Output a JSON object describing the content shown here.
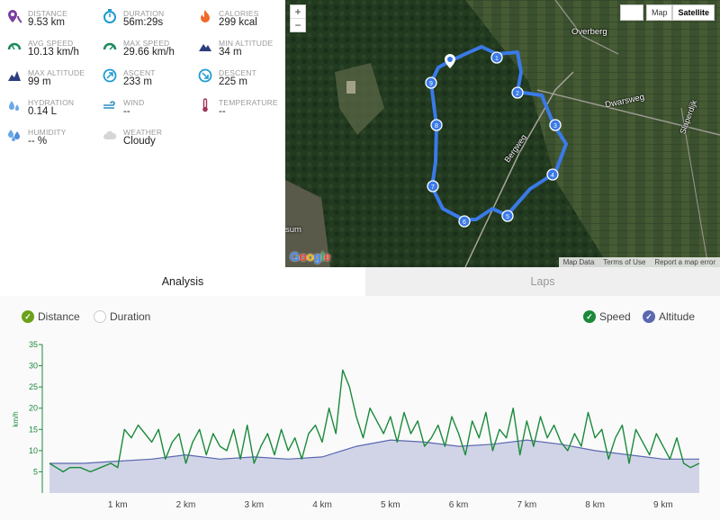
{
  "stats": {
    "distance": {
      "label": "DISTANCE",
      "value": "9.53 km",
      "icon": "map-pin-icon"
    },
    "duration": {
      "label": "DURATION",
      "value": "56m:29s",
      "icon": "stopwatch-icon"
    },
    "calories": {
      "label": "CALORIES",
      "value": "299 kcal",
      "icon": "flame-icon"
    },
    "avg_speed": {
      "label": "AVG SPEED",
      "value": "10.13 km/h",
      "icon": "speedometer-icon"
    },
    "max_speed": {
      "label": "MAX SPEED",
      "value": "29.66 km/h",
      "icon": "speedometer-max-icon"
    },
    "min_altitude": {
      "label": "MIN ALTITUDE",
      "value": "34 m",
      "icon": "mountain-icon"
    },
    "max_altitude": {
      "label": "MAX ALTITUDE",
      "value": "99 m",
      "icon": "mountain-peak-icon"
    },
    "ascent": {
      "label": "ASCENT",
      "value": "233 m",
      "icon": "ascent-icon"
    },
    "descent": {
      "label": "DESCENT",
      "value": "225 m",
      "icon": "descent-icon"
    },
    "hydration": {
      "label": "HYDRATION",
      "value": "0.14 L",
      "icon": "water-drops-icon"
    },
    "wind": {
      "label": "WIND",
      "value": "--",
      "icon": "wind-icon"
    },
    "temperature": {
      "label": "TEMPERATURE",
      "value": "--",
      "icon": "thermometer-icon"
    },
    "humidity": {
      "label": "HUMIDITY",
      "value": "-- %",
      "icon": "humidity-icon"
    },
    "weather": {
      "label": "WEATHER",
      "value": "Cloudy",
      "icon": "cloud-icon"
    }
  },
  "map": {
    "controls": {
      "map": "Map",
      "satellite": "Satellite"
    },
    "zoom": {
      "in": "+",
      "out": "−"
    },
    "labels": {
      "overberg": "Overberg",
      "dwarsweg": "Dwarsweg",
      "slaperdijk": "Slaperdijk",
      "bergweg": "Bergweg",
      "sum": "sum"
    },
    "logo": "Google",
    "attribution": [
      "Map Data",
      "Terms of Use",
      "Report a map error"
    ],
    "markers": [
      "1",
      "2",
      "3",
      "4",
      "5",
      "6",
      "7",
      "8",
      "9"
    ]
  },
  "tabs": {
    "analysis": "Analysis",
    "laps": "Laps"
  },
  "toggles": {
    "distance": "Distance",
    "duration": "Duration",
    "speed": "Speed",
    "altitude": "Altitude"
  },
  "colors": {
    "speed": "#1a8a3a",
    "altitude": "#5a68b0",
    "altitude_fill": "#c9cde3",
    "accent_green": "#6aa119",
    "route": "#3a7ae8"
  },
  "chart_data": {
    "type": "line",
    "ylabel": "km/h",
    "ylim": [
      0,
      35
    ],
    "yticks": [
      5,
      10,
      15,
      20,
      25,
      30,
      35
    ],
    "xlim": [
      0,
      9.53
    ],
    "xticks": [
      "1 km",
      "2 km",
      "3 km",
      "4 km",
      "5 km",
      "6 km",
      "7 km",
      "8 km",
      "9 km"
    ],
    "series": [
      {
        "name": "Speed",
        "x": [
          0,
          0.1,
          0.2,
          0.3,
          0.45,
          0.6,
          0.75,
          0.9,
          1.0,
          1.1,
          1.2,
          1.3,
          1.4,
          1.5,
          1.6,
          1.7,
          1.8,
          1.9,
          2.0,
          2.1,
          2.2,
          2.3,
          2.4,
          2.5,
          2.6,
          2.7,
          2.8,
          2.9,
          3.0,
          3.1,
          3.2,
          3.3,
          3.4,
          3.5,
          3.6,
          3.7,
          3.8,
          3.9,
          4.0,
          4.1,
          4.2,
          4.3,
          4.4,
          4.5,
          4.6,
          4.7,
          4.8,
          4.9,
          5.0,
          5.1,
          5.2,
          5.3,
          5.4,
          5.5,
          5.6,
          5.7,
          5.8,
          5.9,
          6.0,
          6.1,
          6.2,
          6.3,
          6.4,
          6.5,
          6.6,
          6.7,
          6.8,
          6.9,
          7.0,
          7.1,
          7.2,
          7.3,
          7.4,
          7.5,
          7.6,
          7.7,
          7.8,
          7.9,
          8.0,
          8.1,
          8.2,
          8.3,
          8.4,
          8.5,
          8.6,
          8.7,
          8.8,
          8.9,
          9.0,
          9.1,
          9.2,
          9.3,
          9.4,
          9.53
        ],
        "values": [
          7,
          6,
          5,
          6,
          6,
          5,
          6,
          7,
          6,
          15,
          13,
          16,
          14,
          12,
          15,
          8,
          12,
          14,
          7,
          12,
          15,
          9,
          14,
          11,
          10,
          15,
          8,
          16,
          7,
          11,
          14,
          9,
          15,
          10,
          13,
          8,
          14,
          16,
          12,
          20,
          14,
          29,
          25,
          18,
          13,
          20,
          17,
          14,
          18,
          12,
          19,
          14,
          17,
          11,
          13,
          16,
          11,
          18,
          14,
          9,
          17,
          13,
          19,
          10,
          15,
          13,
          20,
          9,
          17,
          11,
          18,
          13,
          16,
          12,
          10,
          14,
          11,
          19,
          13,
          15,
          8,
          13,
          16,
          7,
          15,
          12,
          9,
          14,
          11,
          8,
          13,
          7,
          6,
          7
        ]
      },
      {
        "name": "Altitude",
        "x": [
          0,
          0.5,
          1.0,
          1.5,
          2.0,
          2.5,
          3.0,
          3.5,
          4.0,
          4.5,
          5.0,
          5.5,
          6.0,
          6.5,
          7.0,
          7.5,
          8.0,
          8.5,
          9.0,
          9.53
        ],
        "values": [
          7,
          7,
          7.5,
          8,
          9,
          8,
          8.5,
          8,
          8.5,
          11,
          12.5,
          12,
          11,
          11.5,
          12.5,
          11.5,
          10,
          9,
          8,
          8
        ]
      }
    ]
  }
}
